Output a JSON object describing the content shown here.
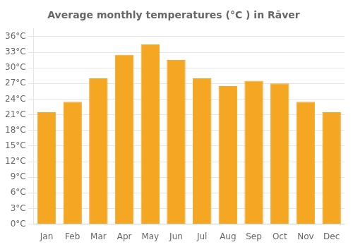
{
  "chart_data": {
    "type": "bar",
    "title": "Average monthly temperatures (°C ) in Rāver",
    "categories": [
      "Jan",
      "Feb",
      "Mar",
      "Apr",
      "May",
      "Jun",
      "Jul",
      "Aug",
      "Sep",
      "Oct",
      "Nov",
      "Dec"
    ],
    "values": [
      21.5,
      23.5,
      28.0,
      32.5,
      34.5,
      31.5,
      28.0,
      26.5,
      27.5,
      27.0,
      23.5,
      21.5
    ],
    "color": "#F5A623",
    "ylim": [
      0,
      37.5
    ],
    "yticks": [
      {
        "value": 0,
        "label": "0°C"
      },
      {
        "value": 3,
        "label": "3°C"
      },
      {
        "value": 6,
        "label": "6°C"
      },
      {
        "value": 9,
        "label": "9°C"
      },
      {
        "value": 12,
        "label": "12°C"
      },
      {
        "value": 15,
        "label": "15°C"
      },
      {
        "value": 18,
        "label": "18°C"
      },
      {
        "value": 21,
        "label": "21°C"
      },
      {
        "value": 24,
        "label": "24°C"
      },
      {
        "value": 27,
        "label": "27°C"
      },
      {
        "value": 30,
        "label": "30°C"
      },
      {
        "value": 33,
        "label": "33°C"
      },
      {
        "value": 36,
        "label": "36°C"
      }
    ],
    "grid": true
  }
}
